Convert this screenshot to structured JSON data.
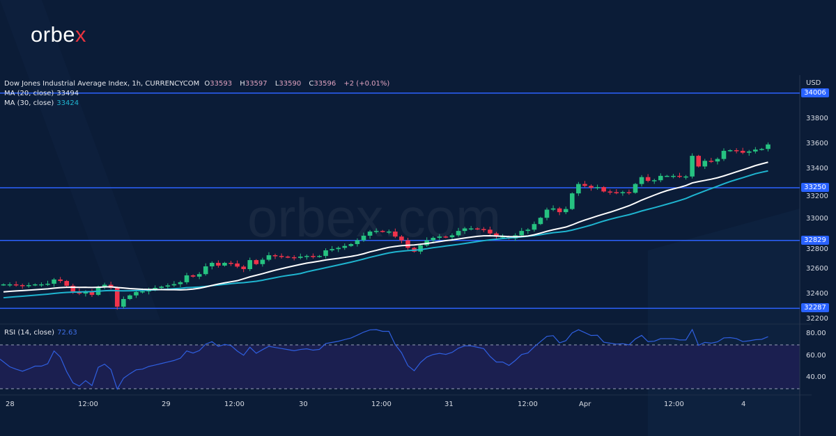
{
  "brand": {
    "logo_main": "orbe",
    "logo_x": "x",
    "watermark": "orbex.com"
  },
  "legend": {
    "symbol": "Dow Jones Industrial Average Index, 1h, CURRENCYCOM",
    "o_label": "O",
    "o": "33593",
    "h_label": "H",
    "h": "33597",
    "l_label": "L",
    "l": "33590",
    "c_label": "C",
    "c": "33596",
    "change": "+2 (+0.01%)",
    "ma20_label": "MA (20, close)",
    "ma20_value": "33494",
    "ma30_label": "MA (30, close)",
    "ma30_value": "33424",
    "rsi_label": "RSI (14, close)",
    "rsi_value": "72.63"
  },
  "price_axis": {
    "currency": "USD",
    "ticks": [
      "33800",
      "33600",
      "33400",
      "33200",
      "33000",
      "32800",
      "32600",
      "32400",
      "32200"
    ],
    "levels": [
      "34006",
      "33250",
      "32829",
      "32287"
    ]
  },
  "rsi_axis": {
    "ticks": [
      "80.00",
      "60.00",
      "40.00"
    ]
  },
  "time_axis": {
    "ticks": [
      "28",
      "12:00",
      "29",
      "12:00",
      "30",
      "12:00",
      "31",
      "12:00",
      "Apr",
      "12:00",
      "4"
    ]
  },
  "colors": {
    "up": "#26c281",
    "down": "#f0334b",
    "ma20": "#ffffff",
    "ma30": "#1fb5d0",
    "level": "#2d62ff",
    "rsi": "#2f5fe0",
    "bg": "#0b1c37"
  },
  "chart_data": {
    "type": "candlestick",
    "title": "Dow Jones Industrial Average Index, 1h",
    "ylim": [
      32200,
      34050
    ],
    "closes": [
      32478,
      32478,
      32472,
      32467,
      32472,
      32478,
      32478,
      32483,
      32517,
      32505,
      32467,
      32422,
      32405,
      32420,
      32394,
      32460,
      32475,
      32450,
      32300,
      32361,
      32390,
      32417,
      32422,
      32440,
      32450,
      32460,
      32470,
      32480,
      32495,
      32550,
      32540,
      32560,
      32622,
      32650,
      32628,
      32650,
      32645,
      32620,
      32600,
      32672,
      32640,
      32675,
      32711,
      32705,
      32700,
      32695,
      32690,
      32700,
      32705,
      32700,
      32705,
      32750,
      32760,
      32770,
      32785,
      32800,
      32830,
      32867,
      32900,
      32905,
      32900,
      32900,
      32860,
      32830,
      32770,
      32740,
      32790,
      32830,
      32850,
      32860,
      32855,
      32870,
      32905,
      32925,
      32925,
      32920,
      32915,
      32885,
      32860,
      32860,
      32845,
      32870,
      32905,
      32915,
      32960,
      33010,
      33075,
      33085,
      33055,
      33080,
      33205,
      33280,
      33265,
      33250,
      33255,
      33220,
      33215,
      33210,
      33215,
      33210,
      33280,
      33335,
      33305,
      33310,
      33345,
      33345,
      33345,
      33340,
      33340,
      33505,
      33420,
      33465,
      33460,
      33480,
      33545,
      33550,
      33545,
      33530,
      33540,
      33555,
      33560,
      33596
    ],
    "horizontal_levels": [
      34006,
      33250,
      32829,
      32287
    ],
    "indicators": [
      "MA 20",
      "MA 30",
      "RSI 14"
    ],
    "rsi_bands": [
      30,
      70
    ]
  }
}
